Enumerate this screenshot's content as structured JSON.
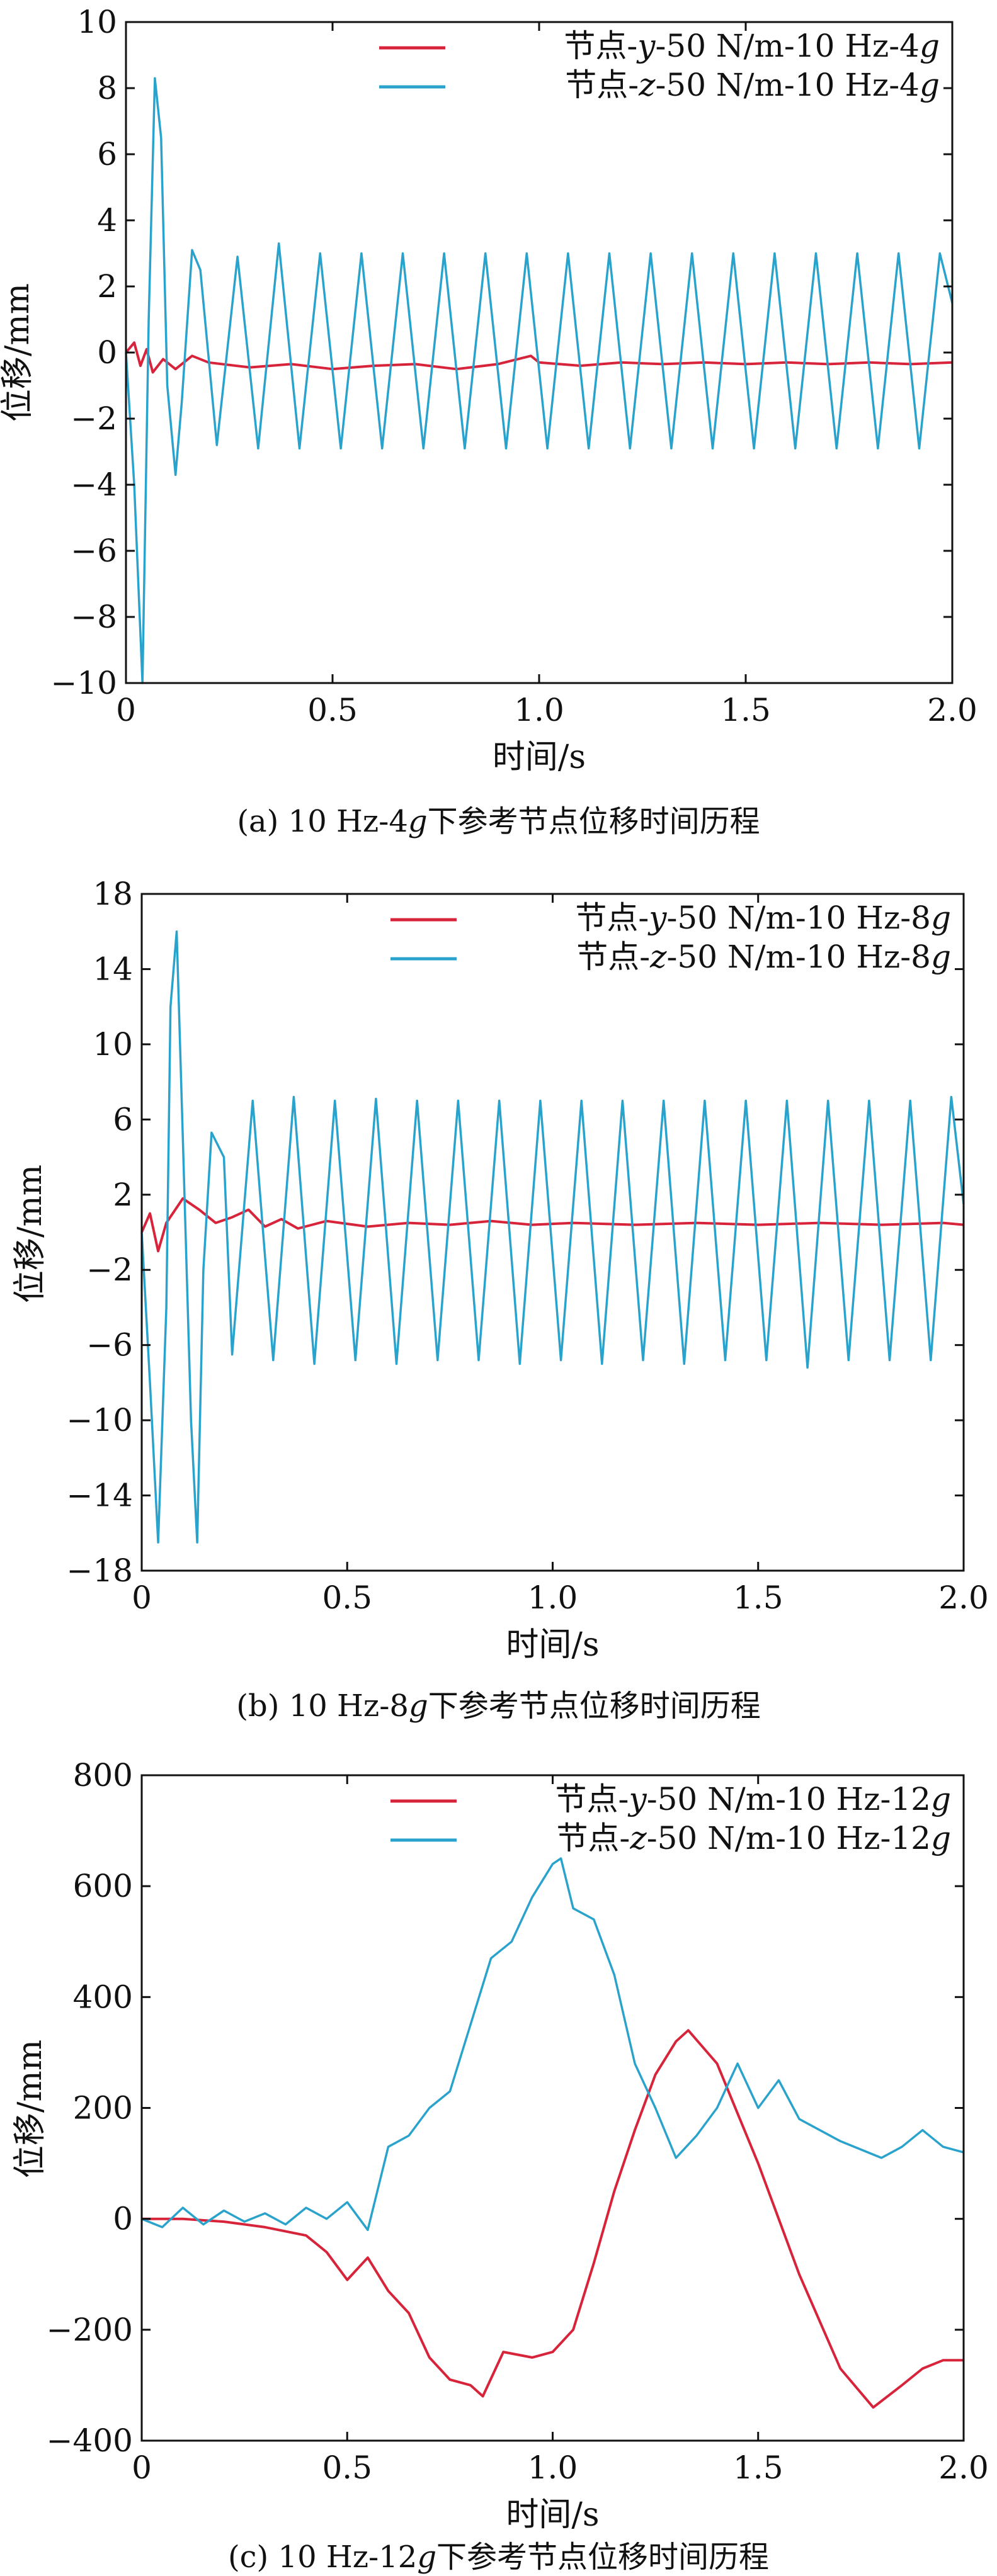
{
  "colors": {
    "series_y": "#d8243a",
    "series_z": "#2aa3cc",
    "axis": "#111111"
  },
  "captions": [
    {
      "pre": "(a) 10 Hz-4",
      "ital": "g",
      "post": "下参考节点位移时间历程"
    },
    {
      "pre": "(b) 10 Hz-8",
      "ital": "g",
      "post": "下参考节点位移时间历程"
    },
    {
      "pre": "(c) 10 Hz-12",
      "ital": "g",
      "post": "下参考节点位移时间历程"
    }
  ],
  "chart_data": [
    {
      "type": "line",
      "title": "",
      "xlabel": "时间/s",
      "ylabel": "位移/mm",
      "xlim": [
        0,
        2.0
      ],
      "ylim": [
        -10,
        10
      ],
      "xticks": [
        "0",
        "0.5",
        "1.0",
        "1.5",
        "2.0"
      ],
      "yticks": [
        "−10",
        "−8",
        "−6",
        "−4",
        "−2",
        "0",
        "2",
        "4",
        "6",
        "8",
        "10"
      ],
      "legend_position": "top-right",
      "series": [
        {
          "name": "节点-y-50 N/m-10 Hz-4g",
          "name_parts": [
            "节点-",
            "y",
            "-50 N/m-10 Hz-4",
            "g"
          ],
          "x": [
            0,
            0.02,
            0.035,
            0.05,
            0.065,
            0.09,
            0.12,
            0.16,
            0.2,
            0.3,
            0.4,
            0.5,
            0.6,
            0.7,
            0.8,
            0.9,
            0.98,
            1.0,
            1.1,
            1.2,
            1.3,
            1.4,
            1.5,
            1.6,
            1.7,
            1.8,
            1.9,
            2.0
          ],
          "values": [
            0,
            0.3,
            -0.4,
            0.1,
            -0.6,
            -0.2,
            -0.5,
            -0.1,
            -0.3,
            -0.45,
            -0.35,
            -0.5,
            -0.4,
            -0.35,
            -0.5,
            -0.35,
            -0.1,
            -0.3,
            -0.4,
            -0.3,
            -0.35,
            -0.3,
            -0.35,
            -0.3,
            -0.35,
            -0.3,
            -0.35,
            -0.3
          ]
        },
        {
          "name": "节点-z-50 N/m-10 Hz-4g",
          "name_parts": [
            "节点-",
            "z",
            "-50 N/m-10 Hz-4",
            "g"
          ],
          "x": [
            0,
            0.02,
            0.04,
            0.055,
            0.07,
            0.085,
            0.1,
            0.12,
            0.135,
            0.16,
            0.18,
            0.22,
            0.27,
            0.32,
            0.37,
            0.42,
            0.47,
            0.52,
            0.57,
            0.62,
            0.67,
            0.72,
            0.77,
            0.82,
            0.87,
            0.92,
            0.97,
            1.02,
            1.07,
            1.12,
            1.17,
            1.22,
            1.27,
            1.32,
            1.37,
            1.42,
            1.47,
            1.52,
            1.57,
            1.62,
            1.67,
            1.72,
            1.77,
            1.82,
            1.87,
            1.92,
            1.97,
            2.0
          ],
          "values": [
            0,
            -4,
            -10,
            1,
            8.3,
            6.5,
            -1,
            -3.7,
            -1.5,
            3.1,
            2.5,
            -2.8,
            2.9,
            -2.9,
            3.3,
            -2.9,
            3.0,
            -2.9,
            3.0,
            -2.9,
            3.0,
            -2.9,
            3.0,
            -2.9,
            3.0,
            -2.9,
            3.0,
            -2.9,
            3.0,
            -2.9,
            3.0,
            -2.9,
            3.0,
            -2.9,
            3.0,
            -2.9,
            3.0,
            -2.9,
            3.0,
            -2.9,
            3.0,
            -2.9,
            3.0,
            -2.9,
            3.0,
            -2.9,
            3.0,
            1.5
          ]
        }
      ]
    },
    {
      "type": "line",
      "title": "",
      "xlabel": "时间/s",
      "ylabel": "位移/mm",
      "xlim": [
        0,
        2.0
      ],
      "ylim": [
        -18,
        18
      ],
      "xticks": [
        "0",
        "0.5",
        "1.0",
        "1.5",
        "2.0"
      ],
      "yticks": [
        "−18",
        "−14",
        "−10",
        "−6",
        "−2",
        "2",
        "6",
        "10",
        "14",
        "18"
      ],
      "legend_position": "top-right",
      "series": [
        {
          "name": "节点-y-50 N/m-10 Hz-8g",
          "name_parts": [
            "节点-",
            "y",
            "-50 N/m-10 Hz-8",
            "g"
          ],
          "x": [
            0,
            0.02,
            0.04,
            0.06,
            0.1,
            0.14,
            0.18,
            0.22,
            0.26,
            0.3,
            0.34,
            0.38,
            0.45,
            0.55,
            0.65,
            0.75,
            0.85,
            0.95,
            1.05,
            1.2,
            1.35,
            1.5,
            1.65,
            1.8,
            1.95,
            2.0
          ],
          "values": [
            0,
            1,
            -1,
            0.5,
            1.8,
            1.2,
            0.5,
            0.8,
            1.2,
            0.3,
            0.7,
            0.2,
            0.6,
            0.3,
            0.5,
            0.4,
            0.6,
            0.4,
            0.5,
            0.4,
            0.5,
            0.4,
            0.5,
            0.4,
            0.5,
            0.4
          ]
        },
        {
          "name": "节点-z-50 N/m-10 Hz-8g",
          "name_parts": [
            "节点-",
            "z",
            "-50 N/m-10 Hz-8",
            "g"
          ],
          "x": [
            0,
            0.02,
            0.04,
            0.06,
            0.07,
            0.085,
            0.1,
            0.12,
            0.135,
            0.15,
            0.17,
            0.2,
            0.22,
            0.27,
            0.32,
            0.37,
            0.42,
            0.47,
            0.52,
            0.57,
            0.62,
            0.67,
            0.72,
            0.77,
            0.82,
            0.87,
            0.92,
            0.97,
            1.02,
            1.07,
            1.12,
            1.17,
            1.22,
            1.27,
            1.32,
            1.37,
            1.42,
            1.47,
            1.52,
            1.57,
            1.62,
            1.67,
            1.72,
            1.77,
            1.82,
            1.87,
            1.92,
            1.97,
            2.0
          ],
          "values": [
            0,
            -8,
            -16.5,
            -4,
            12,
            16,
            5,
            -10,
            -16.5,
            -2,
            5.3,
            4,
            -6.5,
            7,
            -6.8,
            7.2,
            -7,
            7,
            -6.8,
            7.1,
            -7,
            7,
            -6.8,
            7,
            -6.8,
            7,
            -7,
            7,
            -6.8,
            7,
            -7,
            7,
            -6.8,
            7,
            -7,
            7,
            -6.8,
            7,
            -6.8,
            7,
            -7.2,
            7,
            -6.8,
            7,
            -6.8,
            7,
            -6.8,
            7.2,
            1.5
          ]
        }
      ]
    },
    {
      "type": "line",
      "title": "",
      "xlabel": "时间/s",
      "ylabel": "位移/mm",
      "xlim": [
        0,
        2.0
      ],
      "ylim": [
        -400,
        800
      ],
      "xticks": [
        "0",
        "0.5",
        "1.0",
        "1.5",
        "2.0"
      ],
      "yticks": [
        "−400",
        "−200",
        "0",
        "200",
        "400",
        "600",
        "800"
      ],
      "legend_position": "top-right",
      "series": [
        {
          "name": "节点-y-50 N/m-10 Hz-12g",
          "name_parts": [
            "节点-",
            "y",
            "-50 N/m-10 Hz-12",
            "g"
          ],
          "x": [
            0,
            0.1,
            0.2,
            0.3,
            0.4,
            0.45,
            0.5,
            0.55,
            0.6,
            0.65,
            0.7,
            0.75,
            0.8,
            0.83,
            0.88,
            0.95,
            1.0,
            1.05,
            1.1,
            1.15,
            1.2,
            1.25,
            1.3,
            1.33,
            1.4,
            1.5,
            1.6,
            1.7,
            1.78,
            1.85,
            1.9,
            1.95,
            2.0
          ],
          "values": [
            0,
            0,
            -5,
            -15,
            -30,
            -60,
            -110,
            -70,
            -130,
            -170,
            -250,
            -290,
            -300,
            -320,
            -240,
            -250,
            -240,
            -200,
            -80,
            50,
            160,
            260,
            320,
            340,
            280,
            100,
            -100,
            -270,
            -340,
            -300,
            -270,
            -255,
            -255
          ]
        },
        {
          "name": "节点-z-50 N/m-10 Hz-12g",
          "name_parts": [
            "节点-",
            "z",
            "-50 N/m-10 Hz-12",
            "g"
          ],
          "x": [
            0,
            0.05,
            0.1,
            0.15,
            0.2,
            0.25,
            0.3,
            0.35,
            0.4,
            0.45,
            0.5,
            0.55,
            0.6,
            0.65,
            0.7,
            0.75,
            0.8,
            0.85,
            0.9,
            0.95,
            1.0,
            1.02,
            1.05,
            1.1,
            1.15,
            1.2,
            1.25,
            1.3,
            1.35,
            1.4,
            1.45,
            1.5,
            1.55,
            1.6,
            1.7,
            1.8,
            1.85,
            1.9,
            1.95,
            2.0
          ],
          "values": [
            0,
            -15,
            20,
            -10,
            15,
            -5,
            10,
            -10,
            20,
            0,
            30,
            -20,
            130,
            150,
            200,
            230,
            350,
            470,
            500,
            580,
            640,
            650,
            560,
            540,
            440,
            280,
            200,
            110,
            150,
            200,
            280,
            200,
            250,
            180,
            140,
            110,
            130,
            160,
            130,
            120
          ]
        }
      ]
    }
  ]
}
